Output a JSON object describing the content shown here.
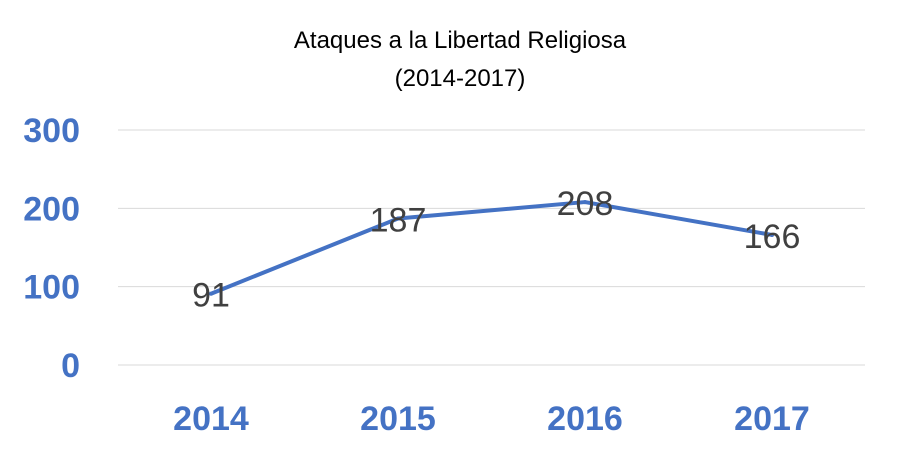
{
  "chart_data": {
    "type": "line",
    "title": "Ataques a la Libertad Religiosa",
    "subtitle": "(2014-2017)",
    "categories": [
      "2014",
      "2015",
      "2016",
      "2017"
    ],
    "series": [
      {
        "name": "Ataques",
        "values": [
          91,
          187,
          208,
          166
        ]
      }
    ],
    "data_labels": [
      "91",
      "187",
      "208",
      "166"
    ],
    "yticks": [
      "0",
      "100",
      "200",
      "300"
    ],
    "ylim": [
      0,
      300
    ],
    "xlabel": "",
    "ylabel": "",
    "grid": true,
    "legend": "none",
    "colors": {
      "line": "#4472C4",
      "grid": "#D9D9D9",
      "ticks": "#4472C4",
      "labels": "#404040"
    }
  }
}
